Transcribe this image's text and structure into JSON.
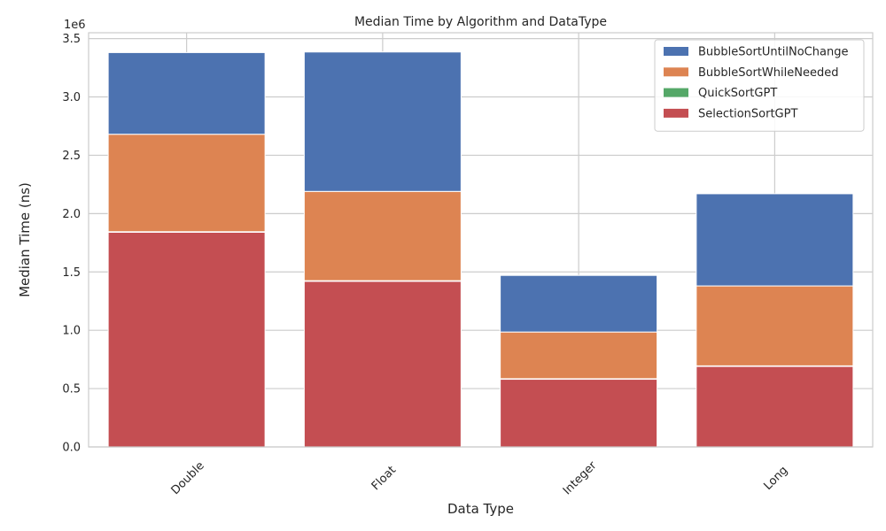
{
  "chart_data": {
    "type": "bar",
    "stacked": true,
    "title": "Median Time by Algorithm and DataType",
    "xlabel": "Data Type",
    "ylabel": "Median Time (ns)",
    "y_offset_label": "1e6",
    "ylim": [
      0,
      3550000
    ],
    "y_ticks": [
      0,
      500000,
      1000000,
      1500000,
      2000000,
      2500000,
      3000000,
      3500000
    ],
    "y_tick_labels": [
      "0.0",
      "0.5",
      "1.0",
      "1.5",
      "2.0",
      "2.5",
      "3.0",
      "3.5"
    ],
    "categories": [
      "Double",
      "Float",
      "Integer",
      "Long"
    ],
    "grid": true,
    "legend_position": "top-right",
    "series": [
      {
        "name": "SelectionSortGPT",
        "color": "#c44e52",
        "values": [
          1840000,
          1420000,
          580000,
          690000
        ]
      },
      {
        "name": "QuickSortGPT",
        "color": "#55a868",
        "values": [
          5000,
          5000,
          5000,
          5000
        ]
      },
      {
        "name": "BubbleSortWhileNeeded",
        "color": "#dd8452",
        "values": [
          835000,
          765000,
          400000,
          685000
        ]
      },
      {
        "name": "BubbleSortUntilNoChange",
        "color": "#4c72b0",
        "values": [
          700000,
          1195000,
          485000,
          790000
        ]
      }
    ],
    "legend_order": [
      "BubbleSortUntilNoChange",
      "BubbleSortWhileNeeded",
      "QuickSortGPT",
      "SelectionSortGPT"
    ]
  }
}
